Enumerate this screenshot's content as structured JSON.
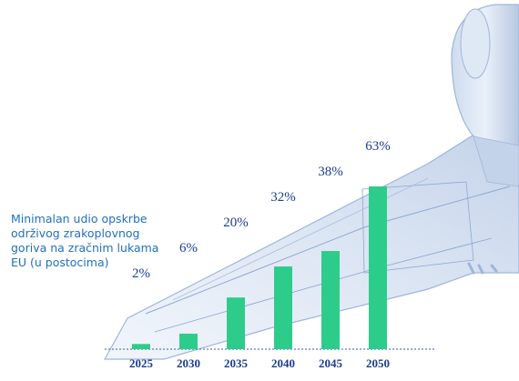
{
  "caption_lines": [
    "Minimalan udio opskrbe",
    "održivog zrakoplovnog",
    "goriva na zračnim lukama",
    "EU (u postocima)"
  ],
  "colors": {
    "bar": "#2ecc8a",
    "text": "#1a3d8f",
    "caption": "#1f6fc0",
    "airplane": "#c9d8ee"
  },
  "chart_data": {
    "type": "bar",
    "categories": [
      "2025",
      "2030",
      "2035",
      "2040",
      "2045",
      "2050"
    ],
    "values": [
      2,
      6,
      20,
      32,
      38,
      63
    ],
    "value_labels": [
      "2%",
      "6%",
      "20%",
      "32%",
      "38%",
      "63%"
    ],
    "title": "Minimalan udio opskrbe održivog zrakoplovnog goriva na zračnim lukama EU (u postocima)",
    "xlabel": "",
    "ylabel": "",
    "ylim": [
      0,
      63
    ],
    "grid": false,
    "legend": "none"
  }
}
